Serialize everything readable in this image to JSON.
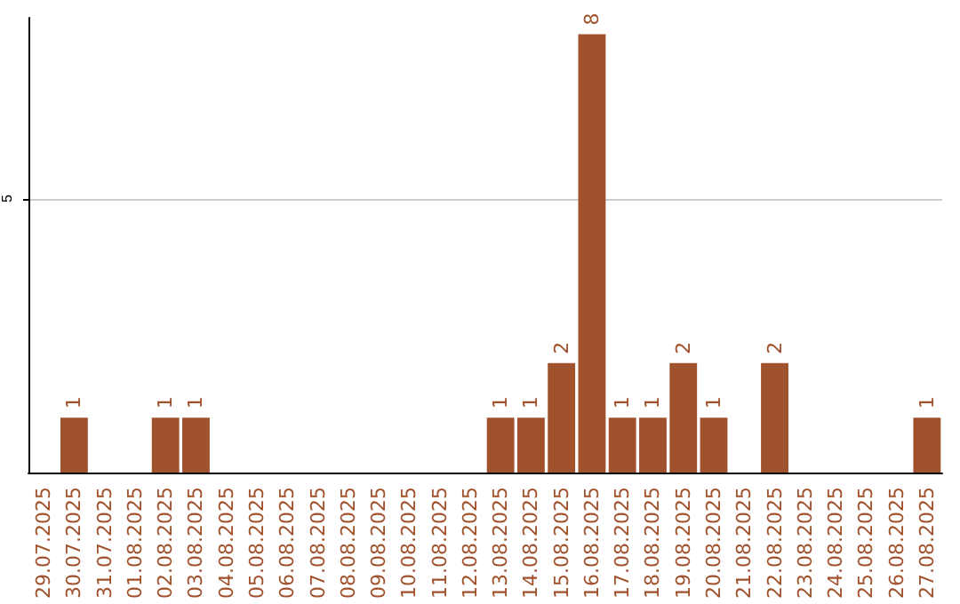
{
  "chart_data": {
    "type": "bar",
    "categories": [
      "29.07.2025",
      "30.07.2025",
      "31.07.2025",
      "01.08.2025",
      "02.08.2025",
      "03.08.2025",
      "04.08.2025",
      "05.08.2025",
      "06.08.2025",
      "07.08.2025",
      "08.08.2025",
      "09.08.2025",
      "10.08.2025",
      "11.08.2025",
      "12.08.2025",
      "13.08.2025",
      "14.08.2025",
      "15.08.2025",
      "16.08.2025",
      "17.08.2025",
      "18.08.2025",
      "19.08.2025",
      "20.08.2025",
      "21.08.2025",
      "22.08.2025",
      "23.08.2025",
      "24.08.2025",
      "25.08.2025",
      "26.08.2025",
      "27.08.2025"
    ],
    "values": [
      0,
      1,
      0,
      0,
      1,
      1,
      0,
      0,
      0,
      0,
      0,
      0,
      0,
      0,
      0,
      1,
      1,
      2,
      8,
      1,
      1,
      2,
      1,
      0,
      2,
      0,
      0,
      0,
      0,
      1
    ],
    "value_labels": [
      null,
      "1",
      null,
      null,
      "1",
      "1",
      null,
      null,
      null,
      null,
      null,
      null,
      null,
      null,
      null,
      "1",
      "1",
      "2",
      "8",
      "1",
      "1",
      "2",
      "1",
      null,
      "2",
      null,
      null,
      null,
      null,
      "1"
    ],
    "color": "#a0522d",
    "ylim": [
      0,
      8.3
    ],
    "yticks": [
      5
    ],
    "grid": "y"
  }
}
